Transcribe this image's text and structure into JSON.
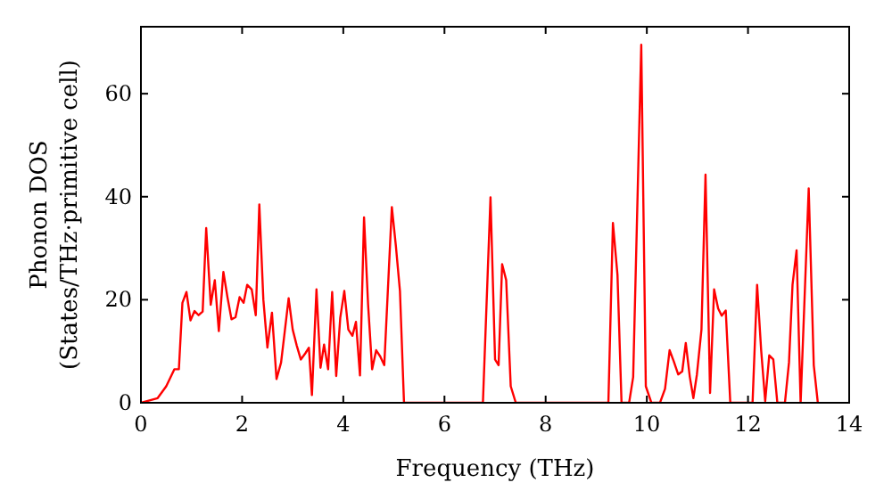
{
  "chart_data": {
    "type": "line",
    "xlabel": "Frequency (THz)",
    "ylabel": "Phonon DOS\n(States/THz·primitive cell)",
    "xlim": [
      0,
      14
    ],
    "ylim": [
      0,
      73
    ],
    "xticks": [
      0,
      2,
      4,
      6,
      8,
      10,
      12,
      14
    ],
    "yticks": [
      0,
      20,
      40,
      60
    ],
    "grid": false,
    "marker": "none",
    "line_style": "solid",
    "series": [
      {
        "color": "#ff0000",
        "x": [
          0,
          0.33,
          0.5,
          0.66,
          0.75,
          0.82,
          0.9,
          0.98,
          1.06,
          1.14,
          1.22,
          1.29,
          1.38,
          1.46,
          1.54,
          1.63,
          1.71,
          1.79,
          1.87,
          1.95,
          2.03,
          2.1,
          2.19,
          2.27,
          2.34,
          2.42,
          2.5,
          2.59,
          2.68,
          2.77,
          2.84,
          2.92,
          3.0,
          3.08,
          3.16,
          3.25,
          3.32,
          3.38,
          3.47,
          3.55,
          3.62,
          3.7,
          3.78,
          3.86,
          3.94,
          4.02,
          4.1,
          4.18,
          4.25,
          4.33,
          4.41,
          4.49,
          4.57,
          4.65,
          4.73,
          4.81,
          4.96,
          5.04,
          5.12,
          5.2,
          6.76,
          6.91,
          7.0,
          7.07,
          7.14,
          7.22,
          7.31,
          7.41,
          9.24,
          9.33,
          9.42,
          9.5,
          9.65,
          9.73,
          9.89,
          9.98,
          10.09,
          10.26,
          10.36,
          10.45,
          10.53,
          10.62,
          10.7,
          10.77,
          10.85,
          10.92,
          10.99,
          11.08,
          11.16,
          11.25,
          11.33,
          11.41,
          11.48,
          11.56,
          11.65,
          12.09,
          12.18,
          12.26,
          12.34,
          12.42,
          12.5,
          12.58,
          12.73,
          12.81,
          12.88,
          12.96,
          13.04,
          13.2,
          13.3,
          13.38
        ],
        "values": [
          0,
          0.9,
          3.2,
          6.5,
          6.5,
          19.4,
          21.5,
          16,
          17.8,
          17,
          17.7,
          33.9,
          19,
          23.8,
          13.9,
          25.4,
          20.5,
          16.2,
          16.6,
          20.5,
          19.4,
          22.9,
          22,
          17,
          38.5,
          20,
          10.7,
          17.5,
          4.6,
          7.8,
          13.6,
          20.3,
          14.2,
          11.1,
          8.4,
          9.6,
          10.7,
          1.5,
          22,
          6.8,
          11.3,
          6.5,
          21.5,
          5.2,
          16.5,
          21.7,
          14.2,
          13,
          15.7,
          5.3,
          36,
          19.1,
          6.5,
          10.2,
          9,
          7.3,
          38,
          30.4,
          21.7,
          0,
          0,
          39.9,
          8.4,
          7.3,
          26.9,
          23.8,
          3.2,
          0,
          0,
          34.9,
          24.8,
          0,
          0,
          5,
          69.5,
          3.2,
          0,
          0,
          2.7,
          10.2,
          8.1,
          5.5,
          6.1,
          11.6,
          5,
          0.9,
          5.5,
          14.2,
          44.3,
          1.9,
          22,
          18.3,
          16.9,
          17.9,
          0,
          0,
          22.9,
          10.2,
          0.3,
          9.2,
          8.4,
          0,
          0,
          7.8,
          22.9,
          29.6,
          0,
          41.6,
          7.3,
          0
        ]
      }
    ]
  }
}
